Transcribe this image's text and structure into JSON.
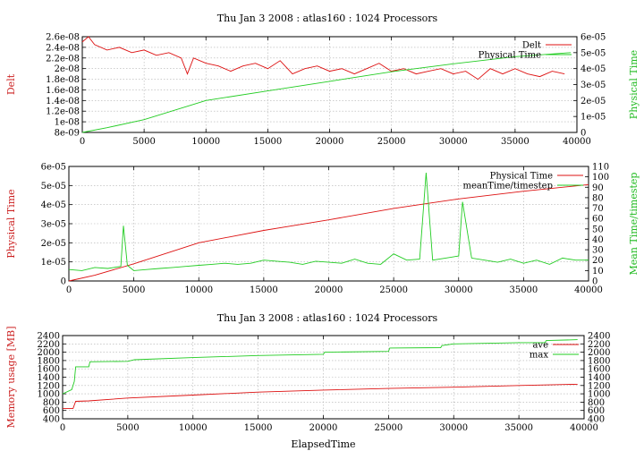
{
  "figure": {
    "title_top": "Thu Jan 3 2008 : atlas160 : 1024 Processors",
    "title_bottom": "Thu Jan 3 2008 : atlas160 : 1024 Processors"
  },
  "colors": {
    "red": "#dd1111",
    "green": "#22cc22",
    "axis_red": "#cc2222",
    "axis_green": "#22bb22",
    "grid": "#b0b0b0"
  },
  "chart_data": [
    {
      "type": "line",
      "title": "Thu Jan 3 2008 : atlas160 : 1024 Processors",
      "xlabel": "",
      "ylabel": "Delt",
      "y2label": "Physical Time",
      "xlim": [
        0,
        40000
      ],
      "ylim": [
        8e-09,
        2.6e-08
      ],
      "y2lim": [
        0,
        6e-05
      ],
      "grid": true,
      "legend_position": "top-right",
      "xticks": [
        "0",
        "5000",
        "10000",
        "15000",
        "20000",
        "25000",
        "30000",
        "35000",
        "40000"
      ],
      "yticks": [
        "8e-09",
        "1e-08",
        "1.2e-08",
        "1.4e-08",
        "1.6e-08",
        "1.8e-08",
        "2e-08",
        "2.2e-08",
        "2.4e-08",
        "2.6e-08"
      ],
      "y2ticks": [
        "0",
        "1e-05",
        "2e-05",
        "3e-05",
        "4e-05",
        "5e-05",
        "6e-05"
      ],
      "series": [
        {
          "name": "Delt",
          "axis": "y",
          "color": "#dd1111",
          "x": [
            0,
            500,
            1000,
            2000,
            3000,
            4000,
            5000,
            6000,
            7000,
            8000,
            8500,
            9000,
            10000,
            11000,
            12000,
            13000,
            14000,
            15000,
            16000,
            17000,
            18000,
            19000,
            20000,
            21000,
            22000,
            23000,
            24000,
            25000,
            26000,
            27000,
            28000,
            29000,
            30000,
            31000,
            32000,
            33000,
            34000,
            35000,
            36000,
            37000,
            38000,
            39000
          ],
          "values": [
            2.5e-08,
            2.6e-08,
            2.45e-08,
            2.35e-08,
            2.4e-08,
            2.3e-08,
            2.35e-08,
            2.25e-08,
            2.3e-08,
            2.2e-08,
            1.9e-08,
            2.2e-08,
            2.1e-08,
            2.05e-08,
            1.95e-08,
            2.05e-08,
            2.1e-08,
            2e-08,
            2.15e-08,
            1.9e-08,
            2e-08,
            2.05e-08,
            1.95e-08,
            2e-08,
            1.9e-08,
            2e-08,
            2.1e-08,
            1.95e-08,
            2e-08,
            1.9e-08,
            1.95e-08,
            2e-08,
            1.9e-08,
            1.95e-08,
            1.8e-08,
            2e-08,
            1.9e-08,
            2e-08,
            1.9e-08,
            1.85e-08,
            1.95e-08,
            1.9e-08
          ]
        },
        {
          "name": "Physical Time",
          "axis": "y2",
          "color": "#22cc22",
          "x": [
            0,
            2000,
            5000,
            10000,
            15000,
            20000,
            25000,
            30000,
            35000,
            39500
          ],
          "values": [
            0,
            3e-06,
            8e-06,
            2e-05,
            2.6e-05,
            3.2e-05,
            3.8e-05,
            4.3e-05,
            4.75e-05,
            5e-05
          ]
        }
      ]
    },
    {
      "type": "line",
      "title": "",
      "xlabel": "",
      "ylabel": "Physical Time",
      "y2label": "Mean Time/timestep",
      "xlim": [
        0,
        40000
      ],
      "ylim": [
        0,
        6e-05
      ],
      "y2lim": [
        0,
        110
      ],
      "grid": true,
      "legend_position": "top-right",
      "xticks": [
        "0",
        "5000",
        "10000",
        "15000",
        "20000",
        "25000",
        "30000",
        "35000",
        "40000"
      ],
      "yticks": [
        "0",
        "1e-05",
        "2e-05",
        "3e-05",
        "4e-05",
        "5e-05",
        "6e-05"
      ],
      "y2ticks": [
        "0",
        "10",
        "20",
        "30",
        "40",
        "50",
        "60",
        "70",
        "80",
        "90",
        "100",
        "110"
      ],
      "series": [
        {
          "name": "Physical Time",
          "axis": "y",
          "color": "#dd1111",
          "x": [
            0,
            2000,
            5000,
            10000,
            15000,
            20000,
            25000,
            30000,
            35000,
            40000
          ],
          "values": [
            0,
            3e-06,
            9e-06,
            2e-05,
            2.65e-05,
            3.2e-05,
            3.8e-05,
            4.3e-05,
            4.7e-05,
            5.05e-05
          ]
        },
        {
          "name": "meanTime/timestep",
          "axis": "y2",
          "color": "#22cc22",
          "x": [
            0,
            1000,
            2000,
            3000,
            4000,
            4200,
            4500,
            5000,
            6000,
            7000,
            8000,
            9000,
            10000,
            11000,
            12000,
            13000,
            14000,
            15000,
            16000,
            17000,
            18000,
            19000,
            20000,
            21000,
            22000,
            23000,
            24000,
            25000,
            26000,
            27000,
            27500,
            28000,
            29000,
            30000,
            30300,
            31000,
            32000,
            33000,
            34000,
            35000,
            36000,
            37000,
            38000,
            39000,
            40000
          ],
          "values": [
            11,
            10,
            13,
            12,
            14,
            53,
            15,
            10,
            11,
            12,
            13,
            14,
            15,
            16,
            17,
            16,
            17,
            20,
            19,
            18,
            16,
            19,
            18,
            17,
            21,
            17,
            16,
            26,
            20,
            21,
            104,
            20,
            22,
            24,
            76,
            22,
            20,
            18,
            21,
            17,
            20,
            16,
            22,
            20,
            20
          ]
        }
      ]
    },
    {
      "type": "line",
      "title": "Thu Jan 3 2008 : atlas160 : 1024 Processors",
      "xlabel": "ElapsedTime",
      "ylabel": "Memory usage [MB]",
      "xlim": [
        0,
        40000
      ],
      "ylim": [
        400,
        2400
      ],
      "y2lim": [
        400,
        2400
      ],
      "grid": true,
      "legend_position": "top-right",
      "xticks": [
        "0",
        "5000",
        "10000",
        "15000",
        "20000",
        "25000",
        "30000",
        "35000",
        "40000"
      ],
      "yticks": [
        "400",
        "600",
        "800",
        "1000",
        "1200",
        "1400",
        "1600",
        "1800",
        "2000",
        "2200",
        "2400"
      ],
      "y2ticks": [
        "400",
        "600",
        "800",
        "1000",
        "1200",
        "1400",
        "1600",
        "1800",
        "2000",
        "2200",
        "2400"
      ],
      "series": [
        {
          "name": "ave",
          "axis": "y",
          "color": "#dd1111",
          "x": [
            0,
            800,
            1000,
            2000,
            5000,
            10000,
            15000,
            20000,
            25000,
            30000,
            35000,
            39500
          ],
          "values": [
            650,
            650,
            820,
            830,
            900,
            970,
            1040,
            1090,
            1130,
            1160,
            1200,
            1230
          ]
        },
        {
          "name": "max",
          "axis": "y",
          "color": "#22cc22",
          "x": [
            0,
            700,
            900,
            1000,
            2000,
            2100,
            5000,
            5500,
            10000,
            15000,
            20000,
            20100,
            25000,
            25100,
            29000,
            29100,
            30000,
            35000,
            37000,
            37100,
            39500
          ],
          "values": [
            1000,
            1100,
            1300,
            1650,
            1650,
            1770,
            1780,
            1820,
            1870,
            1920,
            1950,
            2000,
            2020,
            2100,
            2110,
            2160,
            2200,
            2230,
            2230,
            2280,
            2300
          ]
        }
      ]
    }
  ]
}
